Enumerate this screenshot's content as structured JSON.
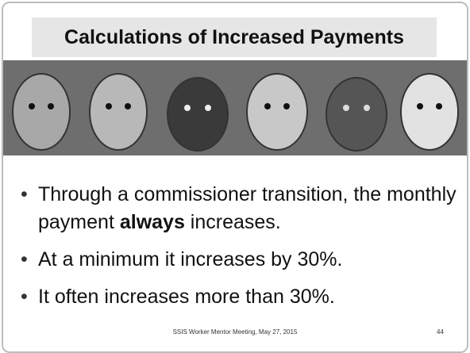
{
  "header": {
    "title": "Calculations of Increased Payments"
  },
  "bullets": [
    {
      "before": "Through a commissioner transition, the monthly payment ",
      "bold": "always",
      "after": " increases."
    },
    {
      "text": "At a minimum it increases by 30%."
    },
    {
      "text": "It often increases more than 30%."
    }
  ],
  "footer": {
    "text": "SSIS Worker Mentor Meeting, May 27, 2015",
    "page": "44"
  }
}
